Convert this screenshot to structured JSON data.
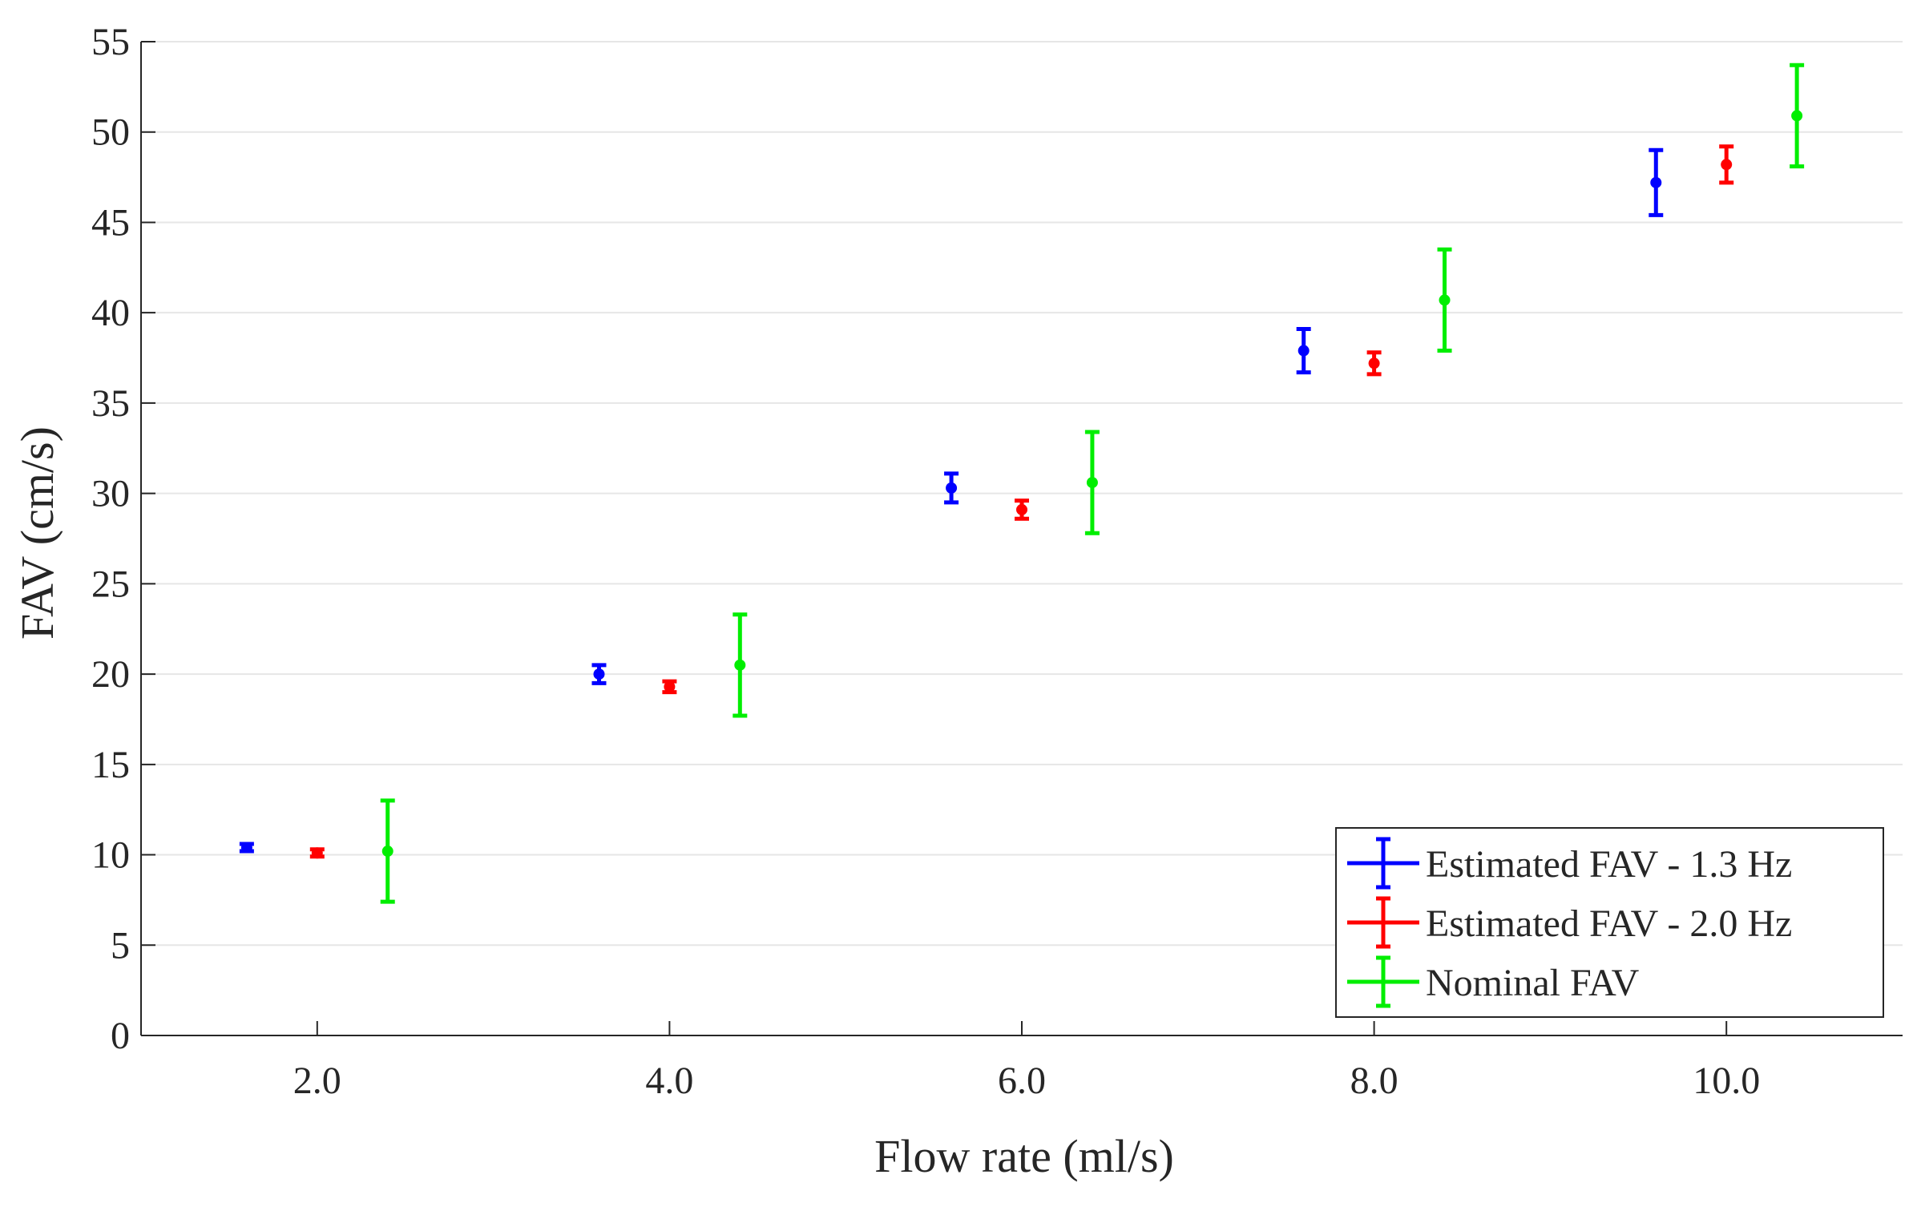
{
  "chart_data": {
    "type": "scatter",
    "xlabel": "Flow rate (ml/s)",
    "ylabel": "FAV (cm/s)",
    "xlim": [
      1.0,
      11.0
    ],
    "ylim": [
      0,
      55
    ],
    "grid": "horizontal",
    "legend_position": "bottom-right",
    "xticks": [
      2,
      4,
      6,
      8,
      10
    ],
    "xtick_labels": [
      "2.0",
      "4.0",
      "6.0",
      "8.0",
      "10.0"
    ],
    "yticks": [
      0,
      5,
      10,
      15,
      20,
      25,
      30,
      35,
      40,
      45,
      50,
      55
    ],
    "ytick_labels": [
      "0",
      "5",
      "10",
      "15",
      "20",
      "25",
      "30",
      "35",
      "40",
      "45",
      "50",
      "55"
    ],
    "series": [
      {
        "name": "Estimated FAV - 1.3 Hz",
        "color": "#0000ff",
        "x": [
          1.6,
          3.6,
          5.6,
          7.6,
          9.6
        ],
        "y": [
          10.4,
          20.0,
          30.3,
          37.9,
          47.2
        ],
        "err_low": [
          0.2,
          0.5,
          0.8,
          1.2,
          1.8
        ],
        "err_high": [
          0.2,
          0.5,
          0.8,
          1.2,
          1.8
        ]
      },
      {
        "name": "Estimated FAV - 2.0 Hz",
        "color": "#ff0000",
        "x": [
          2.0,
          4.0,
          6.0,
          8.0,
          10.0
        ],
        "y": [
          10.1,
          19.3,
          29.1,
          37.2,
          48.2
        ],
        "err_low": [
          0.2,
          0.3,
          0.5,
          0.6,
          1.0
        ],
        "err_high": [
          0.2,
          0.3,
          0.5,
          0.6,
          1.0
        ]
      },
      {
        "name": "Nominal FAV",
        "color": "#00ee00",
        "x": [
          2.4,
          4.4,
          6.4,
          8.4,
          10.4
        ],
        "y": [
          10.2,
          20.5,
          30.6,
          40.7,
          50.9
        ],
        "err_low": [
          2.8,
          2.8,
          2.8,
          2.8,
          2.8
        ],
        "err_high": [
          2.8,
          2.8,
          2.8,
          2.8,
          2.8
        ]
      }
    ]
  }
}
